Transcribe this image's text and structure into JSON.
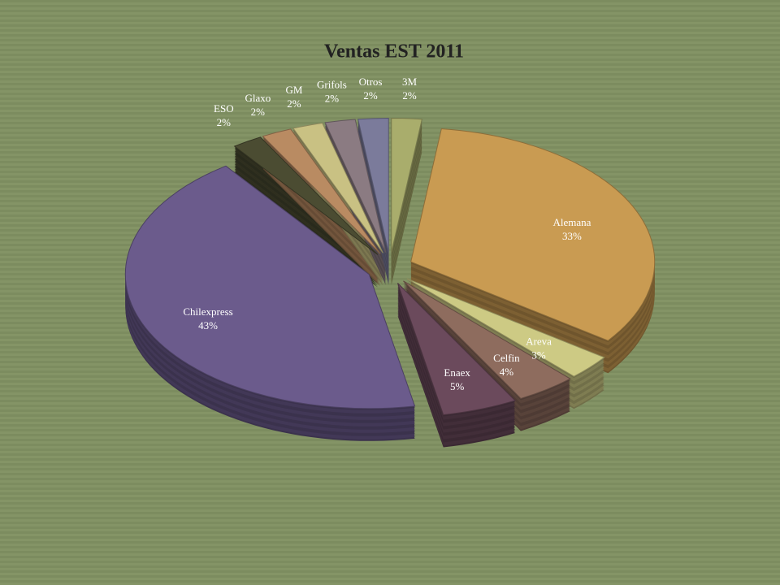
{
  "chart_data": {
    "type": "pie",
    "title": "Ventas EST 2011",
    "categories": [
      "3M",
      "Alemana",
      "Areva",
      "Celfin",
      "Enaex",
      "Chilexpress",
      "ESO",
      "Glaxo",
      "GM",
      "Grifols",
      "Otros"
    ],
    "values": [
      2,
      33,
      3,
      4,
      5,
      43,
      2,
      2,
      2,
      2,
      2
    ],
    "value_labels": [
      "2%",
      "33%",
      "3%",
      "4%",
      "5%",
      "43%",
      "2%",
      "2%",
      "2%",
      "2%",
      "2%"
    ],
    "colors": [
      "#a9ad6c",
      "#c99b52",
      "#cdca84",
      "#8e6c5e",
      "#6b4a5c",
      "#6b5b8c",
      "#4b4c32",
      "#b98b62",
      "#c9c183",
      "#8b7b82",
      "#7b7b9b"
    ]
  }
}
